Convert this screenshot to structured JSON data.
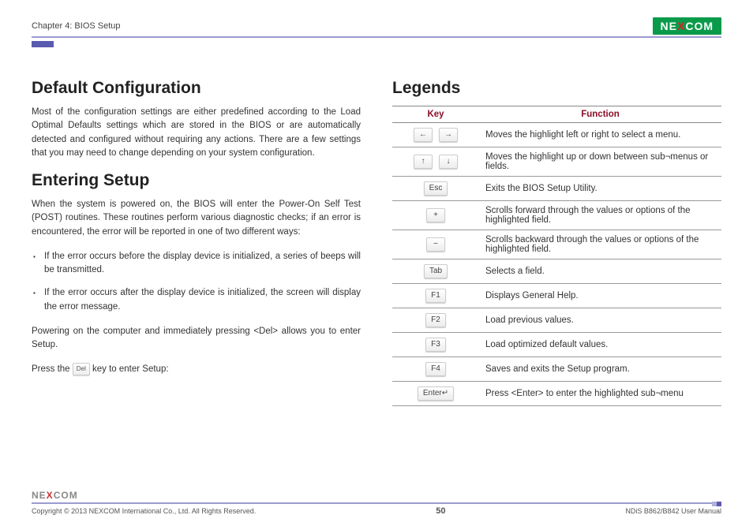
{
  "header": {
    "chapter": "Chapter 4: BIOS Setup",
    "logo_text_pre": "NE",
    "logo_text_x": "X",
    "logo_text_post": "COM"
  },
  "left": {
    "h1": "Default Configuration",
    "p1": "Most of the configuration settings are either predefined according to the Load Optimal Defaults settings which are stored in the BIOS or are automatically detected and configured without requiring any actions. There are a few settings that you may need to change depending on your system configuration.",
    "h2": "Entering Setup",
    "p2": "When the system is powered on, the BIOS will enter the Power-On Self Test (POST) routines. These routines perform various diagnostic checks; if an error is encountered, the error will be reported in one of two different ways:",
    "li1": "If the error occurs before the display device is initialized, a series of beeps will be transmitted.",
    "li2": "If the error occurs after the display device is initialized, the screen will display the error message.",
    "p3": "Powering on the computer and immediately pressing <Del> allows you to enter Setup.",
    "p4_pre": "Press the ",
    "p4_key": "Del",
    "p4_post": " key to enter Setup:"
  },
  "right": {
    "h1": "Legends",
    "th_key": "Key",
    "th_func": "Function",
    "rows": [
      {
        "keys": [
          "←",
          "→"
        ],
        "func": "Moves the highlight left or right to select a menu."
      },
      {
        "keys": [
          "↑",
          "↓"
        ],
        "func": "Moves the highlight up or down between sub¬menus or fields."
      },
      {
        "keys": [
          "Esc"
        ],
        "func": "Exits the BIOS Setup Utility."
      },
      {
        "keys": [
          "+"
        ],
        "func": "Scrolls forward through the values or options of the highlighted field."
      },
      {
        "keys": [
          "−"
        ],
        "func": "Scrolls backward through the values or options of the highlighted field."
      },
      {
        "keys": [
          "Tab"
        ],
        "func": "Selects a field."
      },
      {
        "keys": [
          "F1"
        ],
        "func": "Displays General Help."
      },
      {
        "keys": [
          "F2"
        ],
        "func": "Load previous values."
      },
      {
        "keys": [
          "F3"
        ],
        "func": "Load optimized default values."
      },
      {
        "keys": [
          "F4"
        ],
        "func": "Saves and exits the Setup program."
      },
      {
        "keys": [
          "Enter↵"
        ],
        "func": "Press <Enter> to enter the highlighted sub¬menu"
      }
    ]
  },
  "footer": {
    "copyright": "Copyright © 2013 NEXCOM International Co., Ltd. All Rights Reserved.",
    "page": "50",
    "manual": "NDiS B862/B842 User Manual"
  }
}
